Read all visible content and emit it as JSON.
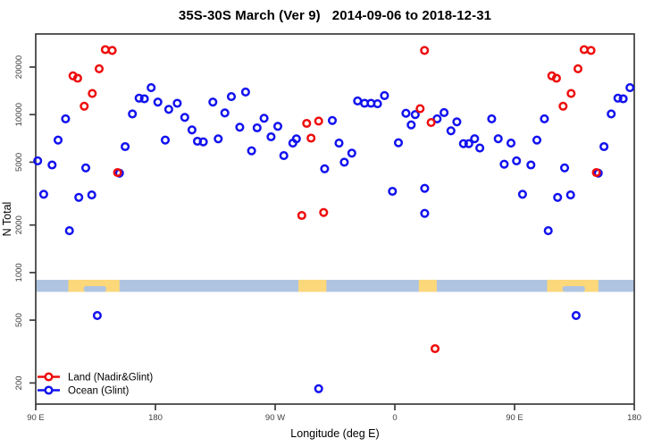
{
  "title": {
    "main": "35S-30S March (Ver 9)",
    "dates": "2014-09-06 to 2018-12-31"
  },
  "chart_data": {
    "type": "scatter",
    "title": "35S-30S March (Ver 9)  2014-09-06 to 2018-12-31",
    "xlabel": "Longitude (deg E)",
    "ylabel": "N Total",
    "x_axis": {
      "range": [
        90,
        540
      ],
      "tick_values": [
        90,
        180,
        270,
        360,
        450,
        540
      ],
      "tick_labels": [
        "90 E",
        "180",
        "90 W",
        "0",
        "90 E",
        "180"
      ],
      "wrap_period": 360,
      "note": "points and land patches with lon <= 180 are plotted again at lon+360"
    },
    "y_axis": {
      "scale": "log10",
      "range": [
        150,
        32000
      ],
      "tick_values": [
        20000,
        10000,
        5000,
        2000,
        1000,
        500,
        200
      ],
      "tick_labels": [
        "20000",
        "10000",
        "5000",
        "2000",
        "1000",
        "500",
        "200"
      ]
    },
    "grid": false,
    "legend_position": "bottom-left",
    "series": [
      {
        "name": "Land (Nadir&Glint)",
        "color": "#ee0d0d",
        "marker": "open-circle",
        "points": [
          [
            118.0,
            17600
          ],
          [
            121.5,
            17000
          ],
          [
            126.5,
            11300
          ],
          [
            132.5,
            13600
          ],
          [
            137.7,
            19500
          ],
          [
            142.3,
            25800
          ],
          [
            147.5,
            25500
          ],
          [
            151.5,
            4300
          ],
          [
            290.0,
            2300
          ],
          [
            293.7,
            8800
          ],
          [
            297.0,
            7100
          ],
          [
            302.7,
            9100
          ],
          [
            306.5,
            2400
          ],
          [
            379.0,
            10900
          ],
          [
            382.3,
            25500
          ],
          [
            387.3,
            8900
          ],
          [
            390.2,
            330
          ]
        ]
      },
      {
        "name": "Ocean (Glint)",
        "color": "#1212ee",
        "marker": "open-circle",
        "points": [
          [
            91.5,
            5100
          ],
          [
            96.0,
            3130
          ],
          [
            102.3,
            4800
          ],
          [
            106.8,
            6900
          ],
          [
            112.4,
            9400
          ],
          [
            115.3,
            1840
          ],
          [
            122.4,
            2990
          ],
          [
            127.6,
            4600
          ],
          [
            132.1,
            3100
          ],
          [
            136.3,
            535
          ],
          [
            152.9,
            4260
          ],
          [
            157.2,
            6270
          ],
          [
            162.7,
            10100
          ],
          [
            167.7,
            12700
          ],
          [
            171.7,
            12600
          ],
          [
            176.8,
            14800
          ],
          [
            181.8,
            12000
          ],
          [
            187.4,
            6900
          ],
          [
            190.0,
            10800
          ],
          [
            196.4,
            11800
          ],
          [
            202.0,
            9600
          ],
          [
            207.5,
            8000
          ],
          [
            211.6,
            6780
          ],
          [
            216.0,
            6720
          ],
          [
            223.2,
            12000
          ],
          [
            227.2,
            7020
          ],
          [
            232.2,
            10250
          ],
          [
            237.1,
            13000
          ],
          [
            243.4,
            8320
          ],
          [
            247.8,
            13900
          ],
          [
            252.3,
            5900
          ],
          [
            256.4,
            8240
          ],
          [
            261.7,
            9480
          ],
          [
            266.9,
            7240
          ],
          [
            272.0,
            8430
          ],
          [
            276.5,
            5500
          ],
          [
            283.3,
            6600
          ],
          [
            286.0,
            7020
          ],
          [
            302.7,
            184
          ],
          [
            307.2,
            4540
          ],
          [
            313.0,
            9180
          ],
          [
            318.0,
            6600
          ],
          [
            322.0,
            5000
          ],
          [
            327.6,
            5700
          ],
          [
            332.0,
            12200
          ],
          [
            337.2,
            11800
          ],
          [
            342.1,
            11800
          ],
          [
            347.0,
            11700
          ],
          [
            352.2,
            13200
          ],
          [
            358.2,
            3270
          ],
          [
            362.7,
            6630
          ],
          [
            368.3,
            10200
          ],
          [
            372.3,
            8610
          ],
          [
            375.3,
            10000
          ],
          [
            382.4,
            3410
          ],
          [
            382.4,
            2370
          ],
          [
            391.8,
            9400
          ],
          [
            397.0,
            10300
          ],
          [
            402.2,
            7900
          ],
          [
            406.6,
            9000
          ],
          [
            411.6,
            6550
          ],
          [
            415.6,
            6550
          ],
          [
            420.0,
            7030
          ],
          [
            423.9,
            6140
          ],
          [
            432.8,
            9400
          ],
          [
            437.7,
            7030
          ],
          [
            442.2,
            4850
          ],
          [
            447.3,
            6600
          ]
        ]
      }
    ],
    "map_band": {
      "description": "land/ocean strip map of the 35S-30S latitude band",
      "ocean_color": "#afc4e1",
      "land_color": "#fcd87a",
      "value_top": 900,
      "value_bottom": 755,
      "land_patches": [
        {
          "name": "Australia",
          "from": 114.5,
          "to": 153.0,
          "notch_from": 126.0,
          "notch_to": 143.0
        },
        {
          "name": "South America",
          "from": 287.5,
          "to": 308.5
        },
        {
          "name": "Southern Africa",
          "from": 378.0,
          "to": 391.5
        }
      ]
    },
    "style": {
      "axis_color": "#3c3c3c",
      "tick_label_color": "#404040",
      "marker_radius": 3.8,
      "marker_stroke_width": 2.5
    }
  }
}
